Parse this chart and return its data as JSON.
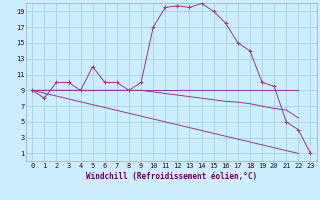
{
  "xlabel": "Windchill (Refroidissement éolien,°C)",
  "background_color": "#cceeff",
  "grid_color": "#99ccdd",
  "line_color": "#993399",
  "xlim": [
    -0.5,
    23.5
  ],
  "ylim": [
    0,
    20
  ],
  "xticks": [
    0,
    1,
    2,
    3,
    4,
    5,
    6,
    7,
    8,
    9,
    10,
    11,
    12,
    13,
    14,
    15,
    16,
    17,
    18,
    19,
    20,
    21,
    22,
    23
  ],
  "yticks": [
    1,
    3,
    5,
    7,
    9,
    11,
    13,
    15,
    17,
    19
  ],
  "curve1_x": [
    0,
    1,
    2,
    3,
    4,
    5,
    6,
    7,
    8,
    9,
    10,
    11,
    12,
    13,
    14,
    15,
    16,
    17,
    18,
    19,
    20,
    21,
    22,
    23
  ],
  "curve1_y": [
    9,
    8,
    10,
    10,
    9,
    12,
    10,
    10,
    9,
    10,
    17,
    19.5,
    19.7,
    19.5,
    20,
    19,
    17.5,
    15,
    14,
    10,
    9.5,
    5,
    4,
    1
  ],
  "curve2_x": [
    0,
    22
  ],
  "curve2_y": [
    9,
    9
  ],
  "curve3_x": [
    0,
    1,
    2,
    3,
    4,
    5,
    6,
    7,
    8,
    9,
    10,
    11,
    12,
    13,
    14,
    15,
    16,
    17,
    18,
    19,
    20,
    21,
    22
  ],
  "curve3_y": [
    9,
    9,
    9,
    9,
    9,
    9,
    9,
    9,
    9,
    9,
    8.8,
    8.6,
    8.4,
    8.2,
    8.0,
    7.8,
    7.6,
    7.5,
    7.3,
    7.0,
    6.7,
    6.5,
    5.5
  ],
  "curve4_x": [
    0,
    22
  ],
  "curve4_y": [
    9,
    1
  ]
}
